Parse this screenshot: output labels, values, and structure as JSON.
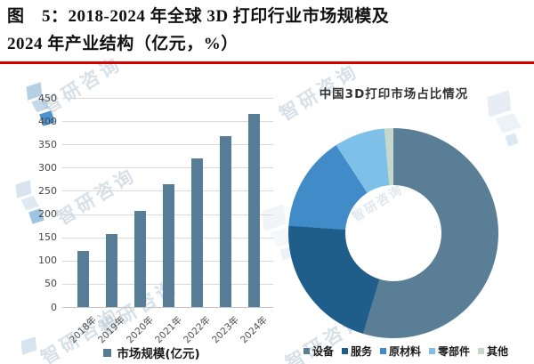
{
  "figure_header": {
    "title_line1": "图　5：2018-2024 年全球 3D 打印行业市场规模及",
    "title_line2": "2024 年产业结构（亿元，%）",
    "rule_color": "#d40000"
  },
  "watermark": {
    "text": "智研咨询"
  },
  "chart_data": [
    {
      "type": "bar",
      "name": "global-3d-printing-market-size",
      "categories": [
        "2018年",
        "2019年",
        "2020年",
        "2021年",
        "2022年",
        "2023年",
        "2024年"
      ],
      "values": [
        120,
        158,
        207,
        265,
        320,
        368,
        415
      ],
      "unit": "亿元",
      "legend": "市场规模(亿元)",
      "ylim": [
        0,
        450
      ],
      "yticks": [
        0,
        50,
        100,
        150,
        200,
        250,
        300,
        350,
        400,
        450
      ],
      "grid": true,
      "gridline_color": "#d9d9d9",
      "bar_color": "#567c96",
      "tick_color": "#454545"
    },
    {
      "type": "donut",
      "name": "china-3d-printing-market-share-2024",
      "title": "中国3D打印市场占比情况",
      "labels": [
        "设备",
        "服务",
        "原材料",
        "零部件",
        "其他"
      ],
      "values": [
        54.7,
        21.4,
        14.7,
        7.8,
        1.4
      ],
      "unit": "%",
      "colors": [
        "#5b7e97",
        "#1f5e8b",
        "#418bc9",
        "#7fc0e8",
        "#c6d8cb"
      ],
      "hole_ratio": 0.46,
      "legend_position": "bottom"
    }
  ]
}
